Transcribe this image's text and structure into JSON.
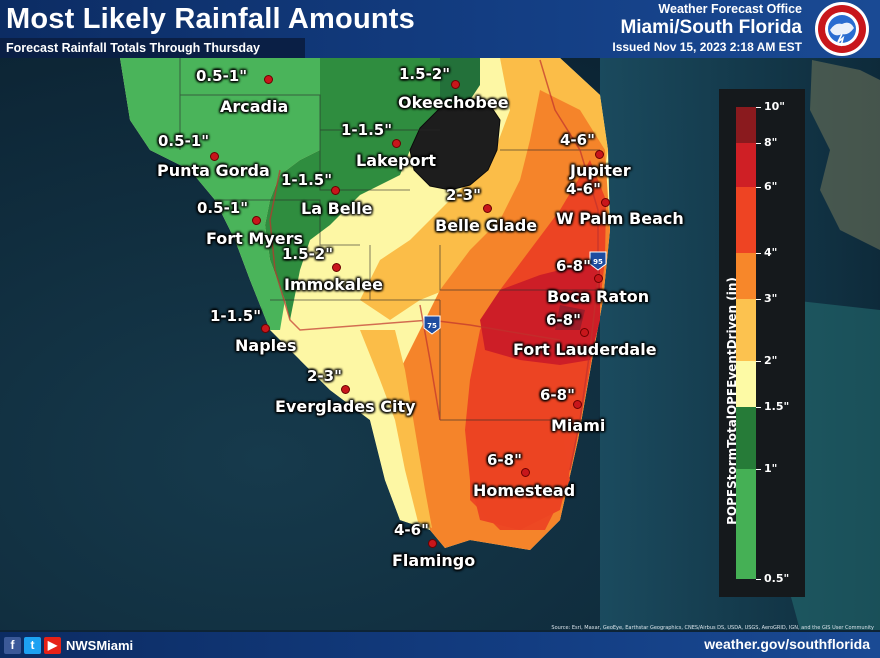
{
  "header": {
    "title": "Most Likely Rainfall Amounts",
    "subtitle": "Forecast Rainfall Totals Through Thursday",
    "office_line1": "Weather Forecast Office",
    "office_line2": "Miami/South Florida",
    "issued": "Issued Nov 15, 2023 2:18 AM EST",
    "logo_text": "NATIONAL WEATHER SERVICE"
  },
  "legend": {
    "title": "PQPFStormTotalQPFEventDriven (in)",
    "ticks": [
      "10\"",
      "8\"",
      "6\"",
      "4\"",
      "3\"",
      "2\"",
      "1.5\"",
      "1\"",
      "0.5\""
    ],
    "colors": {
      "10": "#8a1a1e",
      "8": "#cf1f25",
      "6": "#ee4423",
      "4": "#f7872a",
      "3": "#fcc24f",
      "2": "#fdfaa5",
      "1.5": "#267b38",
      "1": "#39a64a",
      "0.5": "#4cb55a"
    }
  },
  "locations": [
    {
      "city": "Arcadia",
      "amount": "0.5-1\""
    },
    {
      "city": "Okeechobee",
      "amount": "1.5-2\""
    },
    {
      "city": "Punta Gorda",
      "amount": "0.5-1\""
    },
    {
      "city": "Lakeport",
      "amount": "1-1.5\""
    },
    {
      "city": "La Belle",
      "amount": "1-1.5\""
    },
    {
      "city": "Fort Myers",
      "amount": "0.5-1\""
    },
    {
      "city": "Belle Glade",
      "amount": "2-3\""
    },
    {
      "city": "Jupiter",
      "amount": "4-6\""
    },
    {
      "city": "W Palm Beach",
      "amount": "4-6\""
    },
    {
      "city": "Immokalee",
      "amount": "1.5-2\""
    },
    {
      "city": "Boca Raton",
      "amount": "6-8\""
    },
    {
      "city": "Fort Lauderdale",
      "amount": "6-8\""
    },
    {
      "city": "Naples",
      "amount": "1-1.5\""
    },
    {
      "city": "Everglades City",
      "amount": "2-3\""
    },
    {
      "city": "Miami",
      "amount": "6-8\""
    },
    {
      "city": "Homestead",
      "amount": "6-8\""
    },
    {
      "city": "Flamingo",
      "amount": "4-6\""
    }
  ],
  "shields": {
    "i95": "95",
    "i75": "75"
  },
  "footer": {
    "handle": "NWSMiami",
    "url": "weather.gov/southflorida",
    "credits": "Source: Esri, Maxar, GeoEye, Earthstar Geographics, CNES/Airbus DS, USDA, USGS, AeroGRID, IGN, and the GIS User Community",
    "social_icons": [
      "facebook-icon",
      "twitter-icon",
      "youtube-icon"
    ]
  },
  "colors": {
    "header_bg": "#133d82",
    "water": "#0f2d40",
    "lake": "#1e1e1e"
  }
}
